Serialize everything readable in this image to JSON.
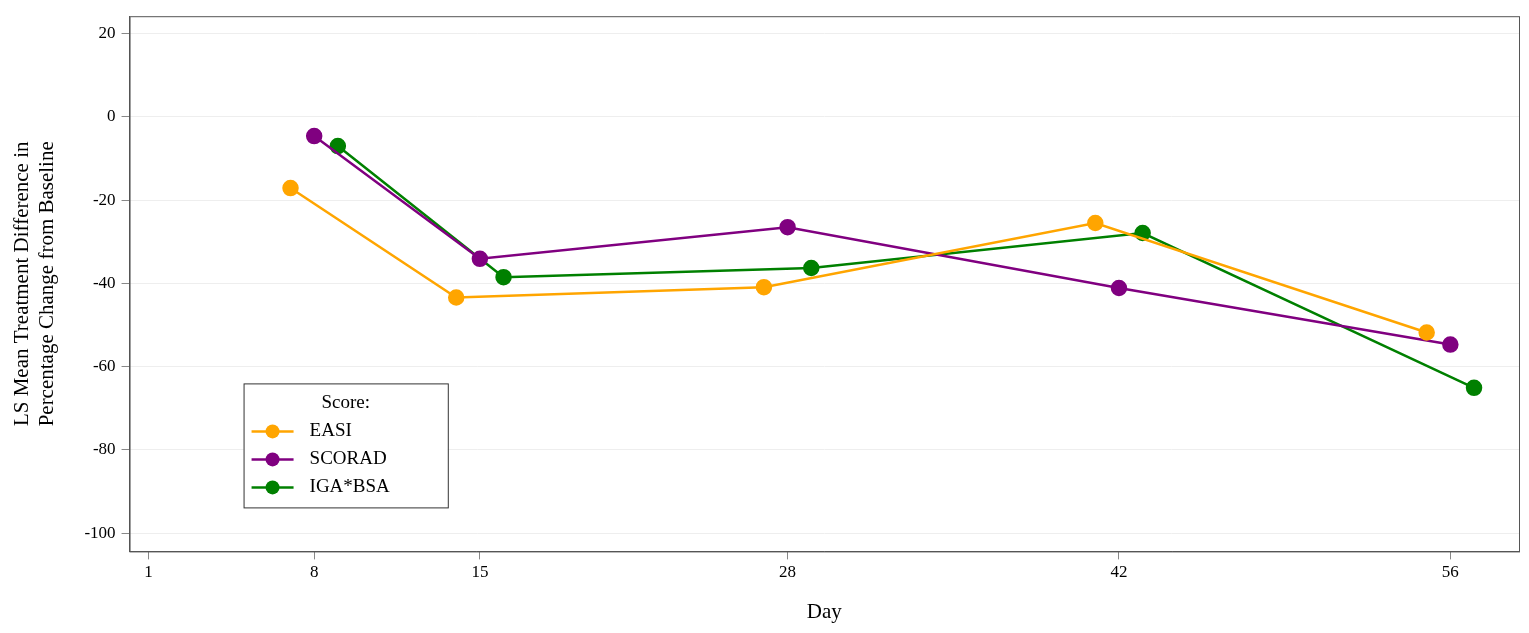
{
  "chart_data": {
    "type": "line",
    "x_label": "Day",
    "y_label": [
      "LS Mean Treatment Difference in",
      "Percentage Change from Baseline"
    ],
    "legend_title": "Score:",
    "series": [
      {
        "name": "EASI",
        "color": "#FFA500",
        "marker": "circle",
        "line_style": "solid",
        "x": [
          7,
          14,
          27,
          41,
          55
        ],
        "values": [
          -17.1,
          -43.4,
          -40.9,
          -25.5,
          -51.8
        ]
      },
      {
        "name": "SCORAD",
        "color": "#800080",
        "marker": "circle",
        "line_style": "solid",
        "x": [
          8,
          15,
          28,
          42,
          56
        ],
        "values": [
          -4.6,
          -34.1,
          -26.5,
          -41.1,
          -54.7
        ]
      },
      {
        "name": "IGA*BSA",
        "color": "#008000",
        "marker": "circle",
        "line_style": "solid",
        "x": [
          9,
          16,
          29,
          43,
          57
        ],
        "values": [
          -7.0,
          -38.5,
          -36.3,
          -27.9,
          -65.1
        ]
      }
    ],
    "xlim": [
      0.2,
      58.9
    ],
    "xticks": [
      1,
      8,
      15,
      28,
      42,
      56
    ],
    "ylim": [
      -104.4,
      24.2
    ],
    "yticks": [
      -100,
      -80,
      -60,
      -40,
      -20,
      0,
      20
    ],
    "grid": "y",
    "legend": "lower left"
  }
}
